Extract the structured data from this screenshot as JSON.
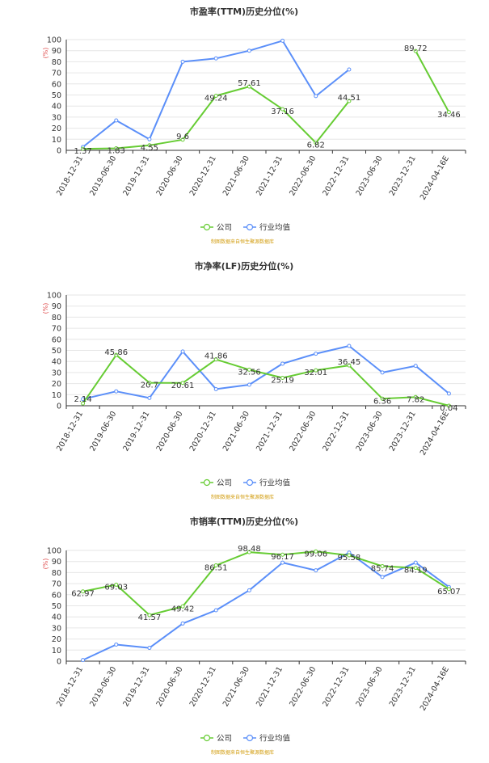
{
  "colors": {
    "company": "#66cc33",
    "industry": "#5b8ff9",
    "grid": "#e6e6e6",
    "axis": "#333333",
    "tick_text": "#333333",
    "unit_text": "#e05050",
    "source_text": "#d4a017",
    "title_text": "#333333"
  },
  "chart_data": [
    {
      "type": "line",
      "title": "市盈率(TTM)历史分位(%)",
      "ylabel": "(%)",
      "ylim": [
        0,
        100
      ],
      "yticks": [
        0,
        10,
        20,
        30,
        40,
        50,
        60,
        70,
        80,
        90,
        100
      ],
      "categories": [
        "2018-12-31",
        "2019-06-30",
        "2019-12-31",
        "2020-06-30",
        "2020-12-31",
        "2021-06-30",
        "2021-12-31",
        "2022-06-30",
        "2022-12-31",
        "2023-06-30",
        "2023-12-31",
        "2024-04-16E"
      ],
      "series": [
        {
          "name": "公司",
          "values": [
            1.37,
            1.83,
            4.55,
            9.6,
            49.24,
            57.61,
            37.16,
            6.82,
            44.51,
            null,
            89.72,
            34.46
          ],
          "labels": [
            "1.37",
            "1.83",
            "4.55",
            "9.6",
            "49.24",
            "57.61",
            "37.16",
            "6.82",
            "44.51",
            "",
            "89.72",
            "34.46"
          ]
        },
        {
          "name": "行业均值",
          "values": [
            3,
            27,
            10,
            80,
            83,
            90,
            99,
            49,
            73,
            null,
            null,
            null
          ]
        }
      ],
      "source": "制图数据来自恒生聚源数据库",
      "grid": true,
      "legend_position": "bottom"
    },
    {
      "type": "line",
      "title": "市净率(LF)历史分位(%)",
      "ylabel": "(%)",
      "ylim": [
        0,
        100
      ],
      "yticks": [
        0,
        10,
        20,
        30,
        40,
        50,
        60,
        70,
        80,
        90,
        100
      ],
      "categories": [
        "2018-12-31",
        "2019-06-30",
        "2019-12-31",
        "2020-06-30",
        "2020-12-31",
        "2021-06-30",
        "2021-12-31",
        "2022-06-30",
        "2022-12-31",
        "2023-06-30",
        "2023-12-31",
        "2024-04-16E"
      ],
      "series": [
        {
          "name": "公司",
          "values": [
            2.14,
            45.86,
            20.7,
            20.61,
            41.86,
            32.56,
            25.19,
            32.01,
            36.45,
            6.36,
            7.82,
            0.04
          ],
          "labels": [
            "2.14",
            "45.86",
            "20.7",
            "20.61",
            "41.86",
            "32.56",
            "25.19",
            "32.01",
            "36.45",
            "6.36",
            "7.82",
            "0.04"
          ]
        },
        {
          "name": "行业均值",
          "values": [
            6,
            13,
            7,
            49,
            15,
            19,
            38,
            47,
            54,
            30,
            36,
            11
          ]
        }
      ],
      "source": "制图数据来自恒生聚源数据库",
      "grid": true,
      "legend_position": "bottom"
    },
    {
      "type": "line",
      "title": "市销率(TTM)历史分位(%)",
      "ylabel": "(%)",
      "ylim": [
        0,
        100
      ],
      "yticks": [
        0,
        10,
        20,
        30,
        40,
        50,
        60,
        70,
        80,
        90,
        100
      ],
      "categories": [
        "2018-12-31",
        "2019-06-30",
        "2019-12-31",
        "2020-06-30",
        "2020-12-31",
        "2021-06-30",
        "2021-12-31",
        "2022-06-30",
        "2022-12-31",
        "2023-06-30",
        "2023-12-31",
        "2024-04-16E"
      ],
      "series": [
        {
          "name": "公司",
          "values": [
            62.97,
            69.03,
            41.57,
            49.42,
            86.51,
            98.48,
            96.17,
            99.06,
            95.58,
            85.74,
            84.19,
            65.07
          ],
          "labels": [
            "62.97",
            "69.03",
            "41.57",
            "49.42",
            "86.51",
            "98.48",
            "96.17",
            "99.06",
            "95.58",
            "85.74",
            "84.19",
            "65.07"
          ]
        },
        {
          "name": "行业均值",
          "values": [
            1,
            15,
            12,
            34,
            46,
            64,
            89,
            82,
            98,
            76,
            89,
            67
          ]
        }
      ],
      "source": "制图数据来自恒生聚源数据库",
      "grid": true,
      "legend_position": "bottom"
    }
  ]
}
